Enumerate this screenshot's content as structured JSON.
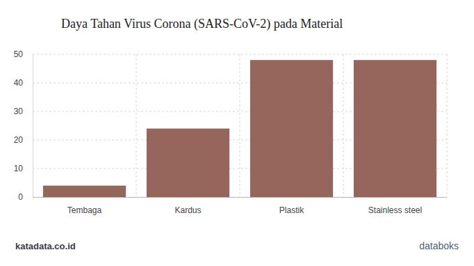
{
  "chart_data": {
    "type": "bar",
    "title": "Daya Tahan Virus Corona (SARS-CoV-2) pada Material",
    "categories": [
      "Tembaga",
      "Kardus",
      "Plastik",
      "Stainless steel"
    ],
    "values": [
      4,
      24,
      48,
      48
    ],
    "color": "#96665c",
    "ylim": [
      0,
      50
    ],
    "yticks": [
      0,
      10,
      20,
      30,
      40,
      50
    ],
    "grid": true,
    "annotations": [
      "katadata.co.id",
      "databoks"
    ]
  }
}
